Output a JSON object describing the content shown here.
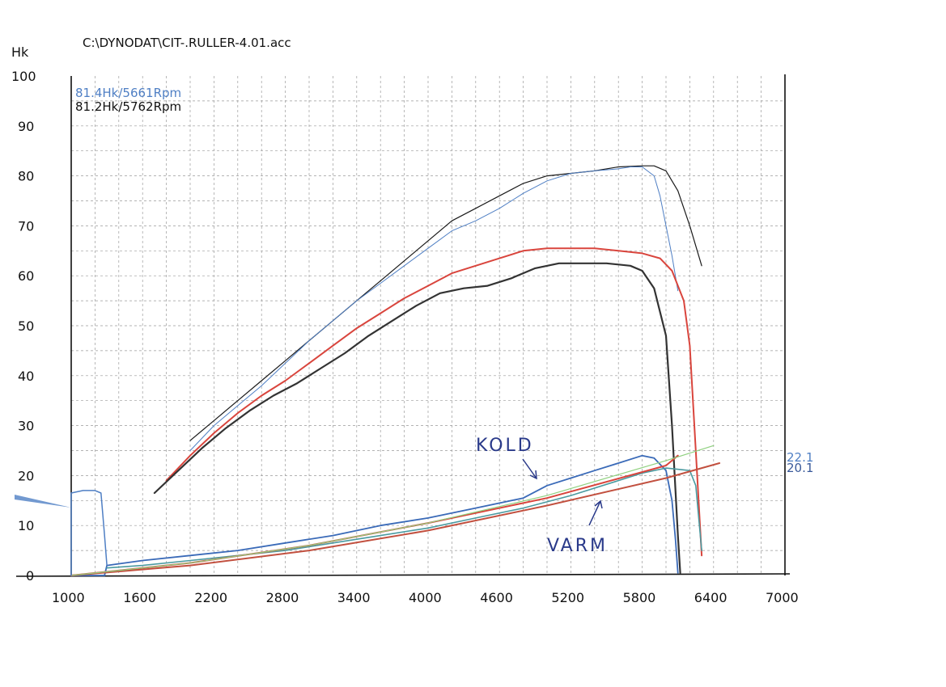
{
  "chart_data": {
    "type": "line",
    "file_path": "C:\\DYNODAT\\CIT-.RULLER-4.01.acc",
    "ylabel": "Hk",
    "xlabel": "",
    "xlim": [
      1000,
      7000
    ],
    "ylim": [
      0,
      100
    ],
    "x_ticks": [
      "1000",
      "1600",
      "2200",
      "2800",
      "3400",
      "4000",
      "4600",
      "5200",
      "5800",
      "6400",
      "7000"
    ],
    "y_ticks": [
      "100",
      "90",
      "80",
      "70",
      "60",
      "50",
      "40",
      "30",
      "20",
      "10",
      "0"
    ],
    "grid": true,
    "peak_notes": [
      {
        "text": "81.4Hk/5661Rpm",
        "color": "#4f7fc4"
      },
      {
        "text": "81.2Hk/5762Rpm",
        "color": "#111111"
      }
    ],
    "right_labels": [
      {
        "text": "22.1",
        "value": 22.1,
        "color": "#4f7fc4"
      },
      {
        "text": "20.1",
        "value": 20.1,
        "color": "#3a5a9a"
      }
    ],
    "annotations": [
      {
        "text": "KOLD",
        "x": 4700,
        "y": 26
      },
      {
        "text": "VARM",
        "x": 4950,
        "y": 5.5
      }
    ],
    "series": [
      {
        "key": "power_black",
        "color": "#1a1a1a",
        "width": 1.2,
        "x": [
          2000,
          2200,
          2400,
          2600,
          2800,
          3000,
          3200,
          3400,
          3600,
          3800,
          4000,
          4200,
          4400,
          4600,
          4800,
          5000,
          5200,
          5400,
          5600,
          5800,
          5900,
          6000,
          6100,
          6200,
          6300
        ],
        "y": [
          27,
          31,
          35,
          39,
          43,
          47,
          51,
          55,
          59,
          63,
          67,
          71,
          73.5,
          76,
          78.5,
          80,
          80.5,
          81,
          81.8,
          82,
          82,
          81,
          77,
          70,
          62
        ]
      },
      {
        "key": "power_blue",
        "color": "#4f7fc4",
        "width": 1.0,
        "x": [
          2000,
          2200,
          2400,
          2600,
          2800,
          3000,
          3200,
          3400,
          3600,
          3800,
          4000,
          4200,
          4400,
          4600,
          4800,
          5000,
          5200,
          5400,
          5600,
          5700,
          5800,
          5900,
          5950,
          6000,
          6050,
          6100
        ],
        "y": [
          25,
          30,
          34,
          38,
          42.5,
          47,
          51,
          55,
          58.5,
          62,
          65.5,
          69,
          71,
          73.5,
          76.5,
          79,
          80.5,
          81,
          81.4,
          81.8,
          81.8,
          80,
          76,
          70,
          64,
          57
        ]
      },
      {
        "key": "torque_red",
        "color": "#d9453d",
        "width": 2.0,
        "x": [
          1800,
          2000,
          2200,
          2400,
          2600,
          2800,
          3000,
          3200,
          3400,
          3600,
          3800,
          4000,
          4200,
          4400,
          4600,
          4800,
          5000,
          5200,
          5400,
          5600,
          5800,
          5950,
          6050,
          6150,
          6200,
          6250,
          6300
        ],
        "y": [
          19,
          24,
          28.5,
          32.5,
          36,
          39,
          42.5,
          46,
          49.5,
          52.5,
          55.5,
          58,
          60.5,
          62,
          63.5,
          65,
          65.5,
          65.5,
          65.5,
          65,
          64.5,
          63.5,
          61,
          55,
          46,
          25,
          4
        ]
      },
      {
        "key": "torque_black",
        "color": "#333333",
        "width": 2.2,
        "x": [
          1700,
          1900,
          2100,
          2300,
          2500,
          2700,
          2900,
          3100,
          3300,
          3500,
          3700,
          3900,
          4100,
          4300,
          4500,
          4700,
          4900,
          5100,
          5300,
          5500,
          5700,
          5800,
          5900,
          6000,
          6050,
          6100,
          6120
        ],
        "y": [
          16.5,
          21,
          25.5,
          29.5,
          33,
          36,
          38.5,
          41.5,
          44.5,
          48,
          51,
          54,
          56.5,
          57.5,
          58,
          59.5,
          61.5,
          62.5,
          62.5,
          62.5,
          62,
          61,
          57.5,
          48,
          30,
          8,
          0.5
        ]
      },
      {
        "key": "kold_blue_noisy",
        "color": "#3a6ab8",
        "width": 1.8,
        "x": [
          1000,
          1280,
          1300,
          1600,
          2000,
          2400,
          2800,
          3200,
          3600,
          4000,
          4400,
          4800,
          5000,
          5200,
          5400,
          5600,
          5800,
          5900,
          6000,
          6050,
          6080,
          6100
        ],
        "y": [
          0,
          0,
          2,
          3,
          4,
          5,
          6.5,
          8,
          10,
          11.5,
          13.5,
          15.5,
          18,
          19.5,
          21,
          22.5,
          24,
          23.5,
          21,
          15,
          7,
          0.5
        ]
      },
      {
        "key": "varm_teal_noisy",
        "color": "#4a9aa0",
        "width": 1.6,
        "x": [
          1300,
          1600,
          2000,
          2400,
          2800,
          3200,
          3600,
          4000,
          4400,
          4800,
          5200,
          5600,
          5800,
          6000,
          6200,
          6250,
          6300
        ],
        "y": [
          1.5,
          2,
          3,
          4,
          5,
          6.5,
          8,
          9.5,
          11.5,
          13.5,
          16,
          19,
          20.5,
          21.5,
          21,
          18,
          5
        ]
      },
      {
        "key": "red_line_upper",
        "color": "#d9453d",
        "width": 2.0,
        "x": [
          1000,
          2000,
          3000,
          4000,
          5000,
          6000,
          6100
        ],
        "y": [
          0,
          2.5,
          6,
          10.5,
          15.5,
          22,
          24
        ]
      },
      {
        "key": "red_line_lower",
        "color": "#c2503f",
        "width": 2.0,
        "x": [
          1000,
          2000,
          3000,
          4000,
          5000,
          6000,
          6450
        ],
        "y": [
          0,
          2,
          5,
          9,
          14,
          19.5,
          22.5
        ]
      },
      {
        "key": "green_line",
        "color": "#8fd07f",
        "width": 1.2,
        "x": [
          1000,
          2000,
          3000,
          4000,
          5000,
          6000,
          6400
        ],
        "y": [
          0,
          2.5,
          6,
          10.5,
          16,
          23,
          26
        ]
      },
      {
        "key": "lead_in_blue",
        "color": "#4f7fc4",
        "width": 1.5,
        "x": [
          1000,
          1100,
          1200,
          1250,
          1280,
          1300
        ],
        "y": [
          16.5,
          17,
          17,
          16.5,
          8,
          2
        ]
      },
      {
        "key": "lead_in_blue_v",
        "color": "#4f7fc4",
        "width": 1.5,
        "x": [
          1000,
          1000
        ],
        "y": [
          0,
          16.5
        ]
      }
    ]
  }
}
